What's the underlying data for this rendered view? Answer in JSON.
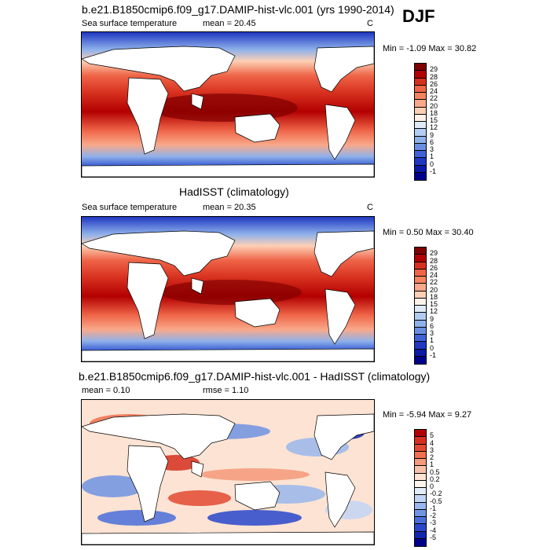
{
  "season": "DJF",
  "panels": [
    {
      "title": "b.e21.B1850cmip6.f09_g17.DAMIP-hist-vlc.001 (yrs 1990-2014)",
      "left_label": "Sea surface temperature",
      "center_label": "mean =  20.45",
      "right_label": "C",
      "minmax": "Min =  -1.09 Max =  30.82",
      "colorbar": {
        "labels": [
          "29",
          "28",
          "26",
          "24",
          "22",
          "20",
          "18",
          "15",
          "12",
          "9",
          "6",
          "3",
          "1",
          "0",
          "-1"
        ],
        "colors": [
          "#7f0000",
          "#b30000",
          "#d7301f",
          "#ef6548",
          "#f4845f",
          "#f9a98b",
          "#fdd0b5",
          "#fff2e8",
          "#deebf7",
          "#b3cdf2",
          "#8eb1ea",
          "#6b8fe0",
          "#3f62d6",
          "#1f37c2",
          "#0c1aa8",
          "#00008b"
        ]
      }
    },
    {
      "title": "HadISST (climatology)",
      "left_label": "Sea surface temperature",
      "center_label": "mean =  20.35",
      "right_label": "C",
      "minmax": "Min =   0.50 Max =  30.40",
      "colorbar": {
        "labels": [
          "29",
          "28",
          "26",
          "24",
          "22",
          "20",
          "18",
          "15",
          "12",
          "9",
          "6",
          "3",
          "1",
          "0",
          "-1"
        ],
        "colors": [
          "#7f0000",
          "#b30000",
          "#d7301f",
          "#ef6548",
          "#f4845f",
          "#f9a98b",
          "#fdd0b5",
          "#fff2e8",
          "#deebf7",
          "#b3cdf2",
          "#8eb1ea",
          "#6b8fe0",
          "#3f62d6",
          "#1f37c2",
          "#0c1aa8",
          "#00008b"
        ]
      }
    },
    {
      "title": "b.e21.B1850cmip6.f09_g17.DAMIP-hist-vlc.001 - HadISST (climatology)",
      "left_label": "mean =   0.10",
      "center_label": "rmse =   1.10",
      "right_label": "",
      "minmax": "Min =  -5.94 Max =   9.27",
      "colorbar": {
        "labels": [
          "5",
          "4",
          "3",
          "2",
          "1",
          "0.5",
          "0.2",
          "0",
          "-0.2",
          "-0.5",
          "-1",
          "-2",
          "-3",
          "-4",
          "-5"
        ],
        "colors": [
          "#b30000",
          "#d7301f",
          "#e34a33",
          "#f07050",
          "#f59a7a",
          "#f9c2a8",
          "#fde3d3",
          "#fff5ee",
          "#e3ecfb",
          "#c3d5f5",
          "#9ab8ee",
          "#6f94e3",
          "#4a6fdb",
          "#2a47cc",
          "#1227b0",
          "#00008b"
        ]
      }
    }
  ]
}
